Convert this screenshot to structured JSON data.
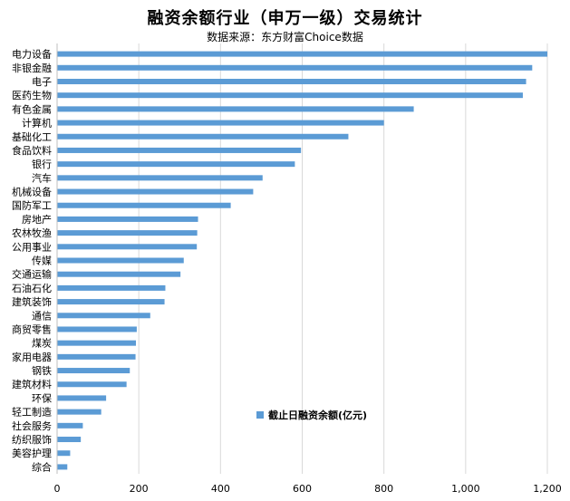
{
  "chart_data": {
    "type": "bar",
    "orientation": "horizontal",
    "title": "融资余额行业（申万一级）交易统计",
    "subtitle": "数据来源：东方财富Choice数据",
    "categories": [
      "电力设备",
      "非银金融",
      "电子",
      "医药生物",
      "有色金属",
      "计算机",
      "基础化工",
      "食品饮料",
      "银行",
      "汽车",
      "机械设备",
      "国防军工",
      "房地产",
      "农林牧渔",
      "公用事业",
      "传媒",
      "交通运输",
      "石油石化",
      "建筑装饰",
      "通信",
      "商贸零售",
      "煤炭",
      "家用电器",
      "钢铁",
      "建筑材料",
      "环保",
      "轻工制造",
      "社会服务",
      "纺织服饰",
      "美容护理",
      "综合"
    ],
    "series": [
      {
        "name": "截止日融资余额(亿元)",
        "color": "#5b9bd5",
        "values": [
          1200,
          1163,
          1148,
          1140,
          873,
          800,
          713,
          597,
          582,
          503,
          480,
          425,
          345,
          343,
          342,
          310,
          302,
          265,
          263,
          228,
          195,
          193,
          192,
          178,
          170,
          120,
          108,
          63,
          58,
          32,
          25
        ]
      }
    ],
    "xlim": [
      0,
      1200
    ],
    "xticks": [
      0,
      200,
      400,
      600,
      800,
      1000,
      1200
    ],
    "xtick_labels": [
      "0",
      "200",
      "400",
      "600",
      "800",
      "1,000",
      "1,200"
    ],
    "grid": true,
    "grid_color": "#d9d9d9",
    "legend_position": "inside-lower-right"
  }
}
